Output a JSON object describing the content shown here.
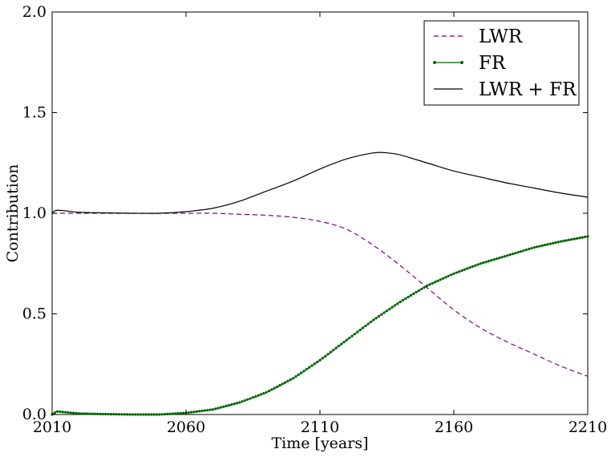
{
  "chart_data": {
    "type": "line",
    "xlabel": "Time [years]",
    "ylabel": "Contribution",
    "xlim": [
      2010,
      2210
    ],
    "ylim": [
      0,
      2
    ],
    "xticks": [
      2010,
      2060,
      2110,
      2160,
      2210
    ],
    "xtick_labels": [
      "2010",
      "2060",
      "2110",
      "2160",
      "2210"
    ],
    "yticks": [
      0,
      0.5,
      1,
      1.5,
      2
    ],
    "ytick_labels": [
      "0.0",
      "0.5",
      "1.0",
      "1.5",
      "2.0"
    ],
    "grid": false,
    "legend_position": "top-right",
    "series": [
      {
        "name": "LWR",
        "color": "#800080",
        "style": "dashed",
        "x": [
          2010,
          2020,
          2030,
          2040,
          2050,
          2060,
          2070,
          2080,
          2090,
          2100,
          2110,
          2120,
          2130,
          2140,
          2150,
          2160,
          2170,
          2180,
          2190,
          2200,
          2210
        ],
        "y": [
          1.0,
          1.0,
          1.0,
          1.0,
          1.0,
          1.0,
          1.0,
          0.995,
          0.99,
          0.98,
          0.96,
          0.92,
          0.84,
          0.74,
          0.63,
          0.52,
          0.43,
          0.36,
          0.3,
          0.24,
          0.19
        ]
      },
      {
        "name": "FR",
        "color": "#006400",
        "style": "solid-dots",
        "x": [
          2010,
          2012,
          2020,
          2030,
          2040,
          2050,
          2060,
          2070,
          2080,
          2090,
          2100,
          2110,
          2120,
          2130,
          2140,
          2150,
          2160,
          2170,
          2180,
          2190,
          2200,
          2210
        ],
        "y": [
          0.0,
          0.015,
          0.005,
          0.002,
          0.0,
          0.0,
          0.008,
          0.025,
          0.06,
          0.11,
          0.18,
          0.27,
          0.37,
          0.47,
          0.56,
          0.64,
          0.7,
          0.75,
          0.79,
          0.83,
          0.86,
          0.885
        ]
      },
      {
        "name": "LWR + FR",
        "color": "#000000",
        "style": "solid",
        "x": [
          2010,
          2012,
          2020,
          2030,
          2040,
          2050,
          2060,
          2070,
          2080,
          2090,
          2100,
          2110,
          2120,
          2130,
          2135,
          2140,
          2150,
          2160,
          2170,
          2180,
          2190,
          2200,
          2210
        ],
        "y": [
          1.0,
          1.015,
          1.005,
          1.002,
          1.0,
          1.0,
          1.008,
          1.025,
          1.06,
          1.11,
          1.16,
          1.22,
          1.27,
          1.3,
          1.3,
          1.29,
          1.25,
          1.21,
          1.18,
          1.15,
          1.125,
          1.1,
          1.08
        ]
      }
    ]
  }
}
